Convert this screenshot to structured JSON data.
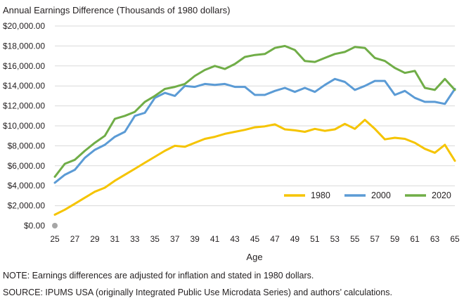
{
  "chart_data": {
    "type": "line",
    "title": "Annual Earnings Difference (Thousands of 1980 dollars)",
    "xlabel": "Age",
    "ylabel": "",
    "ylim": [
      0,
      20000
    ],
    "yticks": [
      "$0.00",
      "$2,000.00",
      "$4,000.00",
      "$6,000.00",
      "$8,000.00",
      "$10,000.00",
      "$12,000.00",
      "$14,000.00",
      "$16,000.00",
      "$18,000.00",
      "$20,000.00"
    ],
    "ytick_values": [
      0,
      2000,
      4000,
      6000,
      8000,
      10000,
      12000,
      14000,
      16000,
      18000,
      20000
    ],
    "xtick_labels": [
      "25",
      "27",
      "29",
      "31",
      "33",
      "35",
      "37",
      "39",
      "41",
      "43",
      "45",
      "47",
      "49",
      "51",
      "53",
      "55",
      "57",
      "59",
      "61",
      "63",
      "65"
    ],
    "x": [
      25,
      26,
      27,
      28,
      29,
      30,
      31,
      32,
      33,
      34,
      35,
      36,
      37,
      38,
      39,
      40,
      41,
      42,
      43,
      44,
      45,
      46,
      47,
      48,
      49,
      50,
      51,
      52,
      53,
      54,
      55,
      56,
      57,
      58,
      59,
      60,
      61,
      62,
      63,
      64,
      65
    ],
    "grid": true,
    "legend_position": "bottom-right",
    "series": [
      {
        "name": "1980",
        "color": "#f5c400",
        "values": [
          1100,
          1600,
          2200,
          2800,
          3400,
          3800,
          4500,
          5100,
          5700,
          6300,
          6900,
          7500,
          8000,
          7900,
          8300,
          8700,
          8900,
          9200,
          9400,
          9600,
          9850,
          9950,
          10150,
          9650,
          9550,
          9400,
          9700,
          9500,
          9650,
          10200,
          9700,
          10600,
          9700,
          8650,
          8800,
          8700,
          8300,
          7700,
          7300,
          8100,
          6500
        ]
      },
      {
        "name": "2000",
        "color": "#5b9bd5",
        "values": [
          4300,
          5100,
          5600,
          6800,
          7600,
          8100,
          8900,
          9400,
          11000,
          11300,
          12800,
          13300,
          13000,
          14000,
          13900,
          14200,
          14100,
          14200,
          13900,
          13900,
          13100,
          13100,
          13500,
          13800,
          13400,
          13800,
          13400,
          14100,
          14700,
          14400,
          13600,
          14000,
          14500,
          14500,
          13100,
          13500,
          12800,
          12400,
          12400,
          12200,
          13700
        ]
      },
      {
        "name": "2020",
        "color": "#70ad47",
        "values": [
          4900,
          6200,
          6600,
          7500,
          8300,
          9000,
          10700,
          11000,
          11400,
          12400,
          13000,
          13700,
          13900,
          14200,
          15000,
          15600,
          16000,
          15700,
          16200,
          16900,
          17100,
          17200,
          17800,
          18000,
          17600,
          16500,
          16400,
          16800,
          17200,
          17400,
          17900,
          17800,
          16800,
          16500,
          15800,
          15300,
          15500,
          13800,
          13600,
          14700,
          13600
        ]
      }
    ]
  },
  "notes": {
    "note": "NOTE: Earnings differences are adjusted for inflation and stated in 1980 dollars.",
    "source": "SOURCE: IPUMS USA (originally Integrated Public Use Microdata Series) and authors’ calculations."
  },
  "colors": {
    "grid": "#d9d9d9",
    "origin_marker": "#a6a6a6",
    "text": "#231f20"
  }
}
